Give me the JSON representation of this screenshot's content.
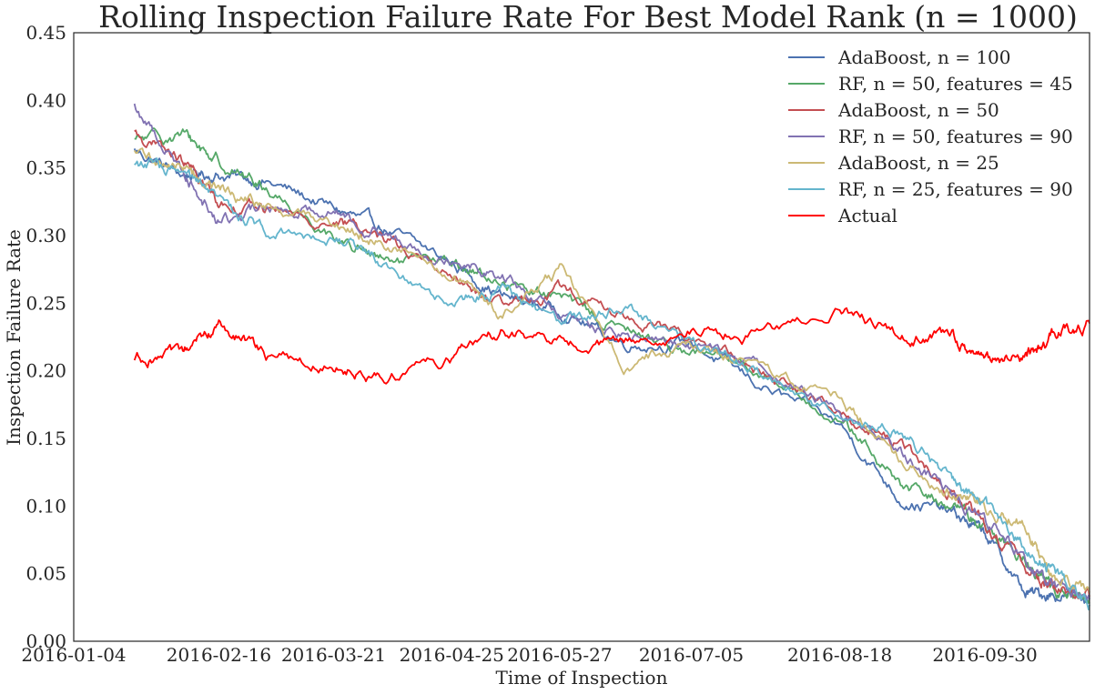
{
  "chart_data": {
    "type": "line",
    "title": "Rolling Inspection Failure Rate For Best Model Rank (n = 1000)",
    "xlabel": "Time of Inspection",
    "ylabel": "Inspection Failure Rate",
    "ylim": [
      0,
      0.45
    ],
    "xlim": [
      "2016-01-04",
      "2016-10-31"
    ],
    "x_ticks": [
      "2016-01-04",
      "2016-02-16",
      "2016-03-21",
      "2016-04-25",
      "2016-05-27",
      "2016-07-05",
      "2016-08-18",
      "2016-09-30"
    ],
    "y_ticks": [
      "0.00",
      "0.05",
      "0.10",
      "0.15",
      "0.20",
      "0.25",
      "0.30",
      "0.35",
      "0.40",
      "0.45"
    ],
    "grid": false,
    "legend_position": "top-right",
    "x": [
      "2016-01-22",
      "2016-02-05",
      "2016-02-16",
      "2016-03-01",
      "2016-03-21",
      "2016-04-05",
      "2016-04-25",
      "2016-05-10",
      "2016-05-27",
      "2016-06-15",
      "2016-07-05",
      "2016-07-25",
      "2016-08-18",
      "2016-09-05",
      "2016-09-20",
      "2016-09-30",
      "2016-10-12",
      "2016-10-20",
      "2016-10-31"
    ],
    "series": [
      {
        "name": "AdaBoost, n = 100",
        "color": "#4c72b0",
        "values": [
          0.363,
          0.345,
          0.345,
          0.34,
          0.32,
          0.305,
          0.28,
          0.255,
          0.245,
          0.22,
          0.22,
          0.19,
          0.16,
          0.105,
          0.095,
          0.08,
          0.035,
          0.035,
          0.032
        ]
      },
      {
        "name": "RF, n = 50, features = 45",
        "color": "#55a868",
        "values": [
          0.37,
          0.375,
          0.355,
          0.335,
          0.3,
          0.28,
          0.28,
          0.265,
          0.255,
          0.23,
          0.215,
          0.2,
          0.165,
          0.115,
          0.1,
          0.085,
          0.06,
          0.04,
          0.028
        ]
      },
      {
        "name": "AdaBoost, n = 50",
        "color": "#c44e52",
        "values": [
          0.375,
          0.355,
          0.325,
          0.32,
          0.31,
          0.3,
          0.27,
          0.245,
          0.26,
          0.24,
          0.225,
          0.2,
          0.17,
          0.145,
          0.11,
          0.085,
          0.055,
          0.04,
          0.033
        ]
      },
      {
        "name": "RF, n = 50, features = 90",
        "color": "#8172b2",
        "values": [
          0.395,
          0.35,
          0.31,
          0.32,
          0.32,
          0.3,
          0.285,
          0.27,
          0.24,
          0.225,
          0.22,
          0.205,
          0.17,
          0.14,
          0.11,
          0.09,
          0.06,
          0.04,
          0.032
        ]
      },
      {
        "name": "AdaBoost, n = 25",
        "color": "#ccb974",
        "values": [
          0.36,
          0.35,
          0.335,
          0.32,
          0.31,
          0.295,
          0.27,
          0.24,
          0.275,
          0.205,
          0.22,
          0.2,
          0.18,
          0.135,
          0.11,
          0.1,
          0.085,
          0.045,
          0.036
        ]
      },
      {
        "name": "RF, n = 25, features = 90",
        "color": "#64b5cd",
        "values": [
          0.355,
          0.345,
          0.325,
          0.305,
          0.3,
          0.28,
          0.25,
          0.26,
          0.235,
          0.25,
          0.22,
          0.2,
          0.165,
          0.155,
          0.12,
          0.1,
          0.07,
          0.05,
          0.027
        ]
      },
      {
        "name": "Actual",
        "color": "#ff0000",
        "values": [
          0.21,
          0.21,
          0.235,
          0.21,
          0.205,
          0.195,
          0.21,
          0.23,
          0.22,
          0.22,
          0.23,
          0.225,
          0.245,
          0.225,
          0.225,
          0.205,
          0.21,
          0.225,
          0.235
        ]
      }
    ]
  }
}
